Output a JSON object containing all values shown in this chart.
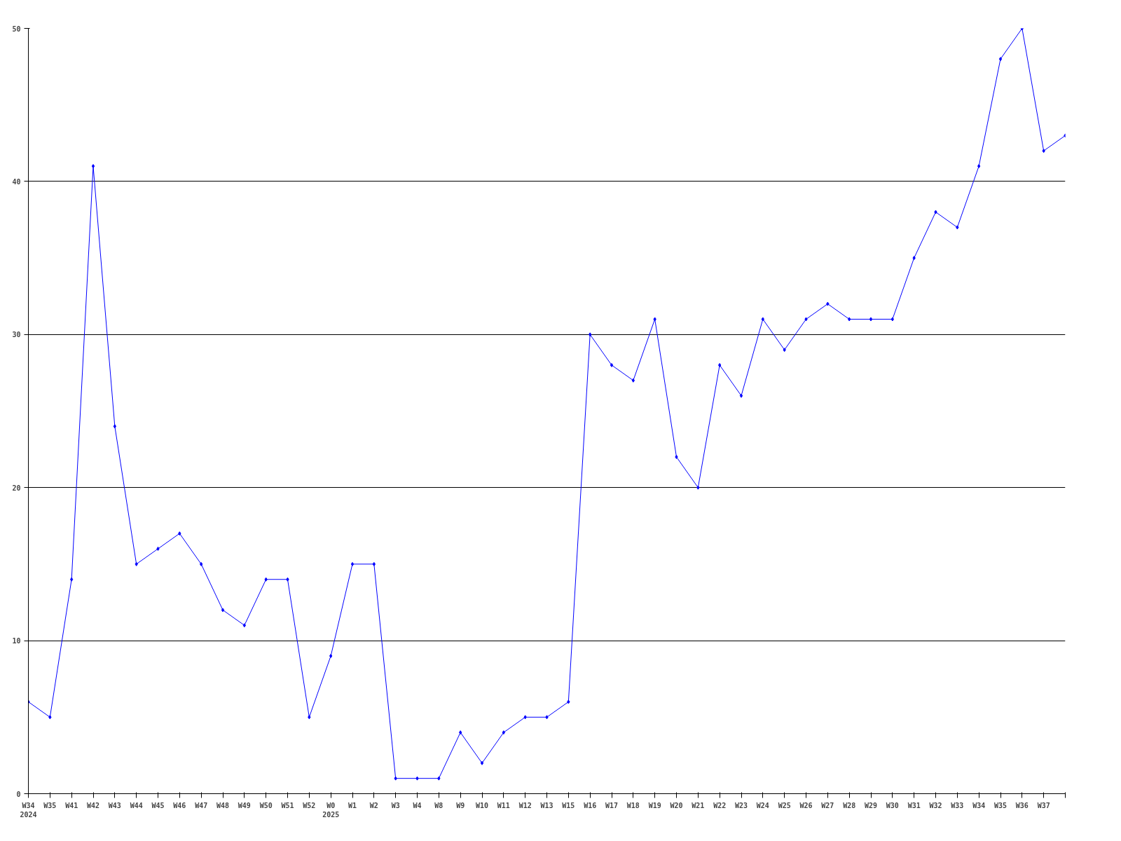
{
  "chart_data": {
    "type": "line",
    "categories": [
      "W34\n2024",
      "W35",
      "W41",
      "W42",
      "W43",
      "W44",
      "W45",
      "W46",
      "W47",
      "W48",
      "W49",
      "W50",
      "W51",
      "W52",
      "W0\n2025",
      "W1",
      "W2",
      "W3",
      "W4",
      "W8",
      "W9",
      "W10",
      "W11",
      "W12",
      "W13",
      "W15",
      "W16",
      "W17",
      "W18",
      "W19",
      "W20",
      "W21",
      "W22",
      "W23",
      "W24",
      "W25",
      "W26",
      "W27",
      "W28",
      "W29",
      "W30",
      "W31",
      "W32",
      "W33",
      "W34",
      "W35",
      "W36",
      "W37",
      null
    ],
    "series": [
      {
        "color": "#0000ff",
        "values": [
          6,
          5,
          14,
          41,
          24,
          15,
          16,
          17,
          15,
          12,
          11,
          14,
          14,
          5,
          9,
          15,
          15,
          1,
          1,
          1,
          4,
          2,
          4,
          5,
          5,
          6,
          30,
          28,
          27,
          31,
          22,
          20,
          28,
          26,
          31,
          29,
          31,
          32,
          31,
          31,
          31,
          35,
          38,
          37,
          41,
          48,
          50,
          42,
          43
        ]
      }
    ],
    "ylim": [
      0,
      50
    ],
    "yticks": [
      0,
      10,
      20,
      30,
      40,
      50
    ],
    "grid": "y",
    "marker": "diamond",
    "line_style": "solid"
  }
}
